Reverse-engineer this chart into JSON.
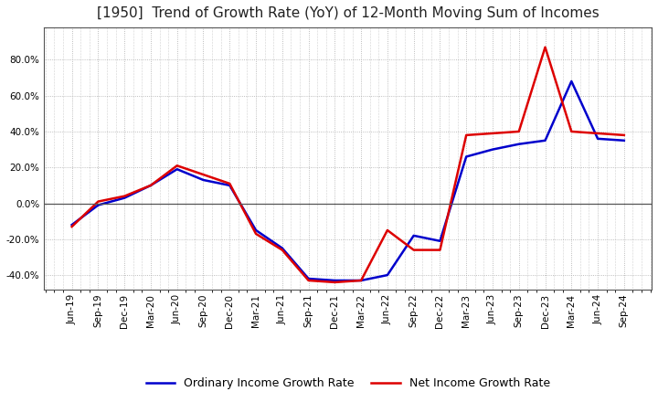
{
  "title": "[1950]  Trend of Growth Rate (YoY) of 12-Month Moving Sum of Incomes",
  "title_fontsize": 11,
  "background_color": "#ffffff",
  "grid_color": "#aaaaaa",
  "line_blue_color": "#0000cc",
  "line_red_color": "#dd0000",
  "legend_blue_label": "Ordinary Income Growth Rate",
  "legend_red_label": "Net Income Growth Rate",
  "ylim": [
    -48,
    98
  ],
  "yticks": [
    -40,
    -20,
    0,
    20,
    40,
    60,
    80
  ],
  "x_labels": [
    "Jun-19",
    "Sep-19",
    "Dec-19",
    "Mar-20",
    "Jun-20",
    "Sep-20",
    "Dec-20",
    "Mar-21",
    "Jun-21",
    "Sep-21",
    "Dec-21",
    "Mar-22",
    "Jun-22",
    "Sep-22",
    "Dec-22",
    "Mar-23",
    "Jun-23",
    "Sep-23",
    "Dec-23",
    "Mar-24",
    "Jun-24",
    "Sep-24"
  ],
  "ordinary_income": [
    -12,
    -1,
    3,
    10,
    19,
    13,
    10,
    -15,
    -25,
    -42,
    -43,
    -43,
    -40,
    -18,
    -21,
    26,
    30,
    33,
    35,
    68,
    36,
    35
  ],
  "net_income": [
    -13,
    1,
    4,
    10,
    21,
    16,
    11,
    -17,
    -26,
    -43,
    -44,
    -43,
    -15,
    -26,
    -26,
    38,
    39,
    40,
    87,
    40,
    39,
    38
  ]
}
